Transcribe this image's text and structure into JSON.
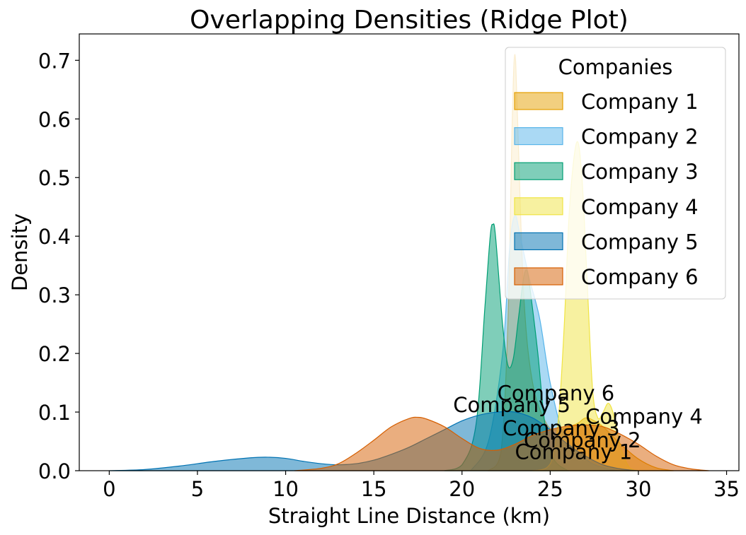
{
  "chart_data": {
    "type": "area",
    "title": "Overlapping Densities (Ridge Plot)",
    "xlabel": "Straight Line Distance (km)",
    "ylabel": "Density",
    "xlim": [
      -1.7,
      35.7
    ],
    "ylim": [
      0,
      0.745
    ],
    "xticks": [
      0,
      5,
      10,
      15,
      20,
      25,
      30,
      35
    ],
    "xtick_labels": [
      "0",
      "5",
      "10",
      "15",
      "20",
      "25",
      "30",
      "35"
    ],
    "yticks": [
      0.0,
      0.1,
      0.2,
      0.3,
      0.4,
      0.5,
      0.6,
      0.7
    ],
    "ytick_labels": [
      "0.0",
      "0.1",
      "0.2",
      "0.3",
      "0.4",
      "0.5",
      "0.6",
      "0.7"
    ],
    "legend": {
      "title": "Companies",
      "position": "top-right"
    },
    "series": [
      {
        "name": "Company 1",
        "label": "Company 1",
        "color": "#E69F00",
        "label_pos": [
          23.0,
          0.02
        ],
        "points": [
          [
            21.5,
            0
          ],
          [
            22.2,
            0.03
          ],
          [
            22.6,
            0.25
          ],
          [
            22.85,
            0.6
          ],
          [
            23.0,
            0.71
          ],
          [
            23.15,
            0.6
          ],
          [
            23.5,
            0.3
          ],
          [
            24.0,
            0.15
          ],
          [
            24.8,
            0.08
          ],
          [
            25.5,
            0.07
          ],
          [
            26.5,
            0.08
          ],
          [
            27.0,
            0.09
          ],
          [
            27.5,
            0.085
          ],
          [
            28.0,
            0.075
          ],
          [
            29.0,
            0.045
          ],
          [
            30.0,
            0.02
          ],
          [
            31.0,
            0.005
          ],
          [
            32.0,
            0
          ]
        ]
      },
      {
        "name": "Company 2",
        "label": "Company 2",
        "color": "#56B4E9",
        "label_pos": [
          23.5,
          0.04
        ],
        "points": [
          [
            20.5,
            0
          ],
          [
            21.5,
            0.05
          ],
          [
            22.3,
            0.2
          ],
          [
            22.7,
            0.38
          ],
          [
            23.0,
            0.435
          ],
          [
            23.3,
            0.4
          ],
          [
            23.8,
            0.33
          ],
          [
            24.4,
            0.26
          ],
          [
            25.0,
            0.15
          ],
          [
            25.8,
            0.06
          ],
          [
            27.0,
            0.02
          ],
          [
            28.0,
            0.005
          ],
          [
            29.0,
            0
          ]
        ]
      },
      {
        "name": "Company 3",
        "label": "Company 3",
        "color": "#009E73",
        "label_pos": [
          22.3,
          0.06
        ],
        "points": [
          [
            19.0,
            0
          ],
          [
            20.0,
            0.01
          ],
          [
            20.8,
            0.08
          ],
          [
            21.3,
            0.28
          ],
          [
            21.6,
            0.4
          ],
          [
            21.75,
            0.42
          ],
          [
            21.9,
            0.4
          ],
          [
            22.3,
            0.25
          ],
          [
            22.6,
            0.18
          ],
          [
            22.9,
            0.19
          ],
          [
            23.2,
            0.26
          ],
          [
            23.5,
            0.33
          ],
          [
            23.7,
            0.34
          ],
          [
            23.9,
            0.3
          ],
          [
            24.3,
            0.2
          ],
          [
            24.7,
            0.08
          ],
          [
            25.2,
            0.02
          ],
          [
            26.0,
            0
          ]
        ]
      },
      {
        "name": "Company 4",
        "label": "Company 4",
        "color": "#F0E442",
        "label_pos": [
          27.0,
          0.08
        ],
        "points": [
          [
            24.0,
            0
          ],
          [
            24.8,
            0.005
          ],
          [
            25.2,
            0.03
          ],
          [
            25.5,
            0.1
          ],
          [
            25.8,
            0.25
          ],
          [
            26.1,
            0.45
          ],
          [
            26.5,
            0.56
          ],
          [
            26.8,
            0.5
          ],
          [
            27.1,
            0.32
          ],
          [
            27.4,
            0.14
          ],
          [
            27.7,
            0.09
          ],
          [
            28.0,
            0.1
          ],
          [
            28.3,
            0.115
          ],
          [
            28.6,
            0.095
          ],
          [
            29.0,
            0.04
          ],
          [
            29.5,
            0.005
          ],
          [
            30.0,
            0
          ]
        ]
      },
      {
        "name": "Company 5",
        "label": "Company 5",
        "color": "#0072B2",
        "label_pos": [
          19.5,
          0.1
        ],
        "points": [
          [
            0,
            0
          ],
          [
            2,
            0.002
          ],
          [
            4,
            0.008
          ],
          [
            6,
            0.016
          ],
          [
            8,
            0.022
          ],
          [
            9,
            0.023
          ],
          [
            10,
            0.021
          ],
          [
            11,
            0.016
          ],
          [
            12,
            0.012
          ],
          [
            13,
            0.01
          ],
          [
            14,
            0.012
          ],
          [
            15,
            0.018
          ],
          [
            16,
            0.028
          ],
          [
            17,
            0.04
          ],
          [
            18,
            0.055
          ],
          [
            19,
            0.07
          ],
          [
            20,
            0.085
          ],
          [
            21,
            0.095
          ],
          [
            22,
            0.1
          ],
          [
            23,
            0.1
          ],
          [
            24,
            0.09
          ],
          [
            25,
            0.07
          ],
          [
            26,
            0.045
          ],
          [
            27,
            0.025
          ],
          [
            28,
            0.01
          ],
          [
            29,
            0.003
          ],
          [
            30,
            0
          ]
        ]
      },
      {
        "name": "Company 6",
        "label": "Company 6",
        "color": "#D55E00",
        "label_pos": [
          22.0,
          0.12
        ],
        "points": [
          [
            10.5,
            0
          ],
          [
            12,
            0.004
          ],
          [
            13,
            0.012
          ],
          [
            14,
            0.03
          ],
          [
            15,
            0.052
          ],
          [
            16,
            0.075
          ],
          [
            17,
            0.089
          ],
          [
            17.5,
            0.091
          ],
          [
            18,
            0.088
          ],
          [
            19,
            0.075
          ],
          [
            20,
            0.055
          ],
          [
            21,
            0.038
          ],
          [
            22,
            0.035
          ],
          [
            23,
            0.045
          ],
          [
            24,
            0.06
          ],
          [
            25,
            0.07
          ],
          [
            26,
            0.076
          ],
          [
            27,
            0.078
          ],
          [
            28,
            0.075
          ],
          [
            29,
            0.062
          ],
          [
            30,
            0.045
          ],
          [
            31,
            0.025
          ],
          [
            32,
            0.01
          ],
          [
            33,
            0.003
          ],
          [
            34,
            0
          ]
        ]
      }
    ]
  }
}
